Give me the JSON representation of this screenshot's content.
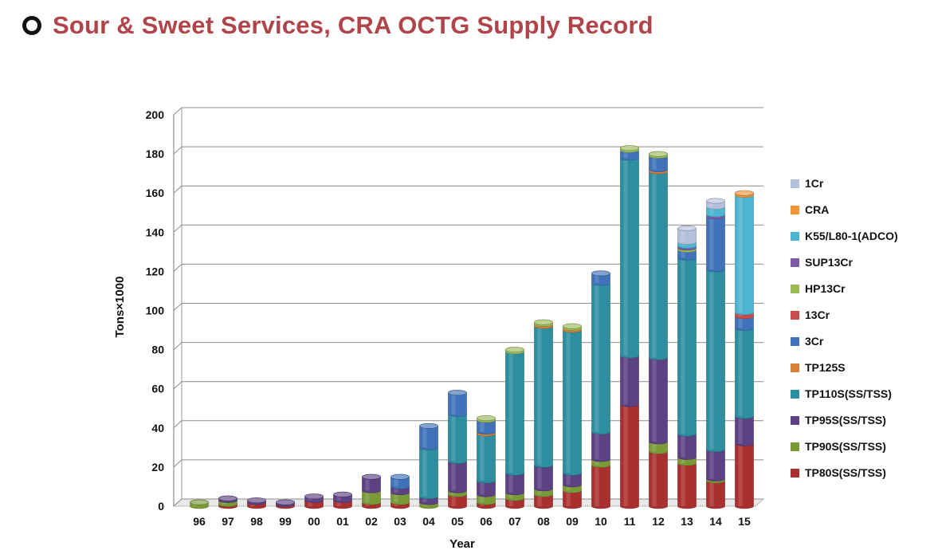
{
  "header": {
    "title": "Sour & Sweet Services, CRA OCTG Supply Record"
  },
  "chart_data": {
    "type": "bar",
    "stacked": true,
    "xlabel": "Year",
    "ylabel": "Tons×1000",
    "ylim": [
      0,
      200
    ],
    "yticks": [
      0,
      20,
      40,
      60,
      80,
      100,
      120,
      140,
      160,
      180,
      200
    ],
    "grid": true,
    "legend_position": "right",
    "categories": [
      "96",
      "97",
      "98",
      "99",
      "00",
      "01",
      "02",
      "03",
      "04",
      "05",
      "06",
      "07",
      "08",
      "09",
      "10",
      "11",
      "12",
      "13",
      "14",
      "15"
    ],
    "series": [
      {
        "name": "TP80S(SS/TSS)",
        "color": "#a8312f",
        "values": [
          0,
          1,
          2,
          1,
          3,
          3,
          2,
          2,
          0,
          6,
          2,
          4,
          6,
          8,
          21,
          52,
          28,
          22,
          13,
          32
        ]
      },
      {
        "name": "TP90S(SS/TSS)",
        "color": "#7a9a38",
        "values": [
          2,
          2,
          0,
          0,
          0,
          0,
          6,
          5,
          2,
          2,
          4,
          3,
          3,
          3,
          3,
          0,
          5,
          3,
          1,
          0
        ]
      },
      {
        "name": "TP95S(SS/TSS)",
        "color": "#5c4283",
        "values": [
          0,
          1,
          1,
          1,
          2,
          3,
          7,
          3,
          3,
          15,
          7,
          10,
          12,
          6,
          14,
          25,
          43,
          12,
          15,
          14
        ]
      },
      {
        "name": "TP110S(SS/TSS)",
        "color": "#2d8ea0",
        "values": [
          0,
          0,
          0,
          0,
          0,
          0,
          0,
          0,
          25,
          24,
          24,
          62,
          71,
          73,
          76,
          101,
          95,
          90,
          92,
          45
        ]
      },
      {
        "name": "TP125S",
        "color": "#d4813a",
        "values": [
          0,
          0,
          0,
          0,
          0,
          0,
          0,
          0,
          0,
          0,
          1,
          0,
          1,
          1,
          0,
          0,
          1,
          0,
          0,
          0
        ]
      },
      {
        "name": "3Cr",
        "color": "#3f72b8",
        "values": [
          0,
          0,
          0,
          0,
          0,
          0,
          0,
          5,
          11,
          11,
          6,
          0,
          0,
          0,
          5,
          4,
          7,
          4,
          27,
          6
        ]
      },
      {
        "name": "13Cr",
        "color": "#c84d4a",
        "values": [
          0,
          0,
          0,
          0,
          0,
          0,
          0,
          0,
          0,
          0,
          0,
          0,
          0,
          0,
          0,
          0,
          0,
          0,
          0,
          2
        ]
      },
      {
        "name": "HP13Cr",
        "color": "#9bbb59",
        "values": [
          0,
          0,
          0,
          0,
          0,
          0,
          0,
          0,
          0,
          0,
          1,
          1,
          1,
          1,
          0,
          1,
          1,
          1,
          0,
          0
        ]
      },
      {
        "name": "SUP13Cr",
        "color": "#7c5aa6",
        "values": [
          0,
          0,
          0,
          0,
          0,
          0,
          0,
          0,
          0,
          0,
          0,
          0,
          0,
          0,
          0,
          0,
          0,
          1,
          1,
          0
        ]
      },
      {
        "name": "K55/L80-1(ADCO)",
        "color": "#4db5cf",
        "values": [
          0,
          0,
          0,
          0,
          0,
          0,
          0,
          0,
          0,
          0,
          0,
          0,
          0,
          0,
          0,
          0,
          0,
          2,
          4,
          60
        ]
      },
      {
        "name": "CRA",
        "color": "#f0953a",
        "values": [
          0,
          0,
          0,
          0,
          0,
          0,
          0,
          0,
          0,
          0,
          0,
          0,
          0,
          0,
          0,
          0,
          0,
          0,
          0,
          1
        ]
      },
      {
        "name": "1Cr",
        "color": "#b4c0db",
        "values": [
          0,
          0,
          0,
          0,
          0,
          0,
          0,
          0,
          0,
          0,
          0,
          0,
          0,
          0,
          0,
          0,
          0,
          7,
          3,
          0
        ]
      }
    ]
  }
}
